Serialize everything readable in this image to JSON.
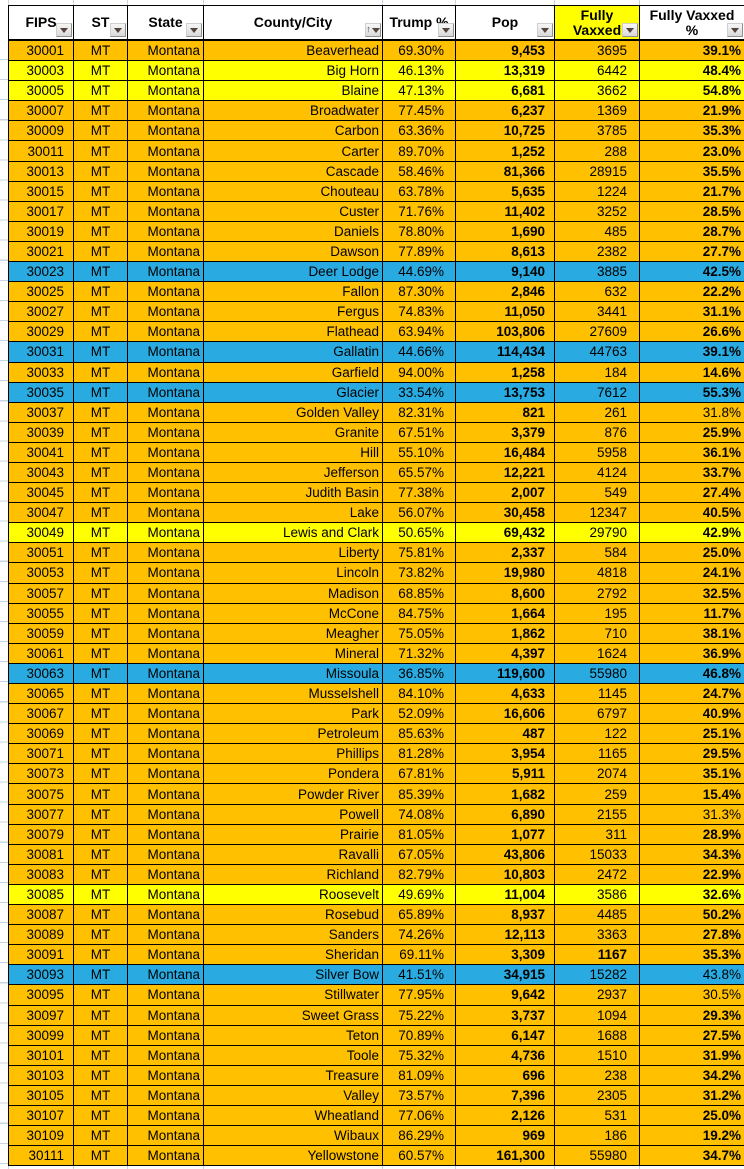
{
  "colors": {
    "row_orange": "#FFC000",
    "row_yellow": "#FFFF00",
    "row_blue": "#29ABE2",
    "header_highlight": "#FFFF00"
  },
  "header": {
    "columns": [
      {
        "id": "fips",
        "label": "FIPS"
      },
      {
        "id": "st",
        "label": "ST"
      },
      {
        "id": "state",
        "label": "State"
      },
      {
        "id": "county",
        "label": "County/City",
        "sorted": true
      },
      {
        "id": "trump",
        "label": "Trump %"
      },
      {
        "id": "pop",
        "label": "Pop"
      },
      {
        "id": "vaxxed",
        "label": "Fully Vaxxed",
        "highlight": "yellow"
      },
      {
        "id": "pct",
        "label": "Fully Vaxxed %"
      }
    ]
  },
  "rows_fields": [
    "fips",
    "st",
    "state",
    "county",
    "trump_pct",
    "pop",
    "fully_vaxxed",
    "fully_vaxxed_pct",
    "row_color",
    "flags"
  ],
  "rows": [
    [
      "30001",
      "MT",
      "Montana",
      "Beaverhead",
      "69.30%",
      "9,453",
      "3695",
      "39.1%",
      "orange",
      ""
    ],
    [
      "30003",
      "MT",
      "Montana",
      "Big Horn",
      "46.13%",
      "13,319",
      "6442",
      "48.4%",
      "yellow",
      ""
    ],
    [
      "30005",
      "MT",
      "Montana",
      "Blaine",
      "47.13%",
      "6,681",
      "3662",
      "54.8%",
      "yellow",
      ""
    ],
    [
      "30007",
      "MT",
      "Montana",
      "Broadwater",
      "77.45%",
      "6,237",
      "1369",
      "21.9%",
      "orange",
      ""
    ],
    [
      "30009",
      "MT",
      "Montana",
      "Carbon",
      "63.36%",
      "10,725",
      "3785",
      "35.3%",
      "orange",
      ""
    ],
    [
      "30011",
      "MT",
      "Montana",
      "Carter",
      "89.70%",
      "1,252",
      "288",
      "23.0%",
      "orange",
      ""
    ],
    [
      "30013",
      "MT",
      "Montana",
      "Cascade",
      "58.46%",
      "81,366",
      "28915",
      "35.5%",
      "orange",
      ""
    ],
    [
      "30015",
      "MT",
      "Montana",
      "Chouteau",
      "63.78%",
      "5,635",
      "1224",
      "21.7%",
      "orange",
      ""
    ],
    [
      "30017",
      "MT",
      "Montana",
      "Custer",
      "71.76%",
      "11,402",
      "3252",
      "28.5%",
      "orange",
      ""
    ],
    [
      "30019",
      "MT",
      "Montana",
      "Daniels",
      "78.80%",
      "1,690",
      "485",
      "28.7%",
      "orange",
      ""
    ],
    [
      "30021",
      "MT",
      "Montana",
      "Dawson",
      "77.89%",
      "8,613",
      "2382",
      "27.7%",
      "orange",
      ""
    ],
    [
      "30023",
      "MT",
      "Montana",
      "Deer Lodge",
      "44.69%",
      "9,140",
      "3885",
      "42.5%",
      "blue",
      ""
    ],
    [
      "30025",
      "MT",
      "Montana",
      "Fallon",
      "87.30%",
      "2,846",
      "632",
      "22.2%",
      "orange",
      ""
    ],
    [
      "30027",
      "MT",
      "Montana",
      "Fergus",
      "74.83%",
      "11,050",
      "3441",
      "31.1%",
      "orange",
      ""
    ],
    [
      "30029",
      "MT",
      "Montana",
      "Flathead",
      "63.94%",
      "103,806",
      "27609",
      "26.6%",
      "orange",
      ""
    ],
    [
      "30031",
      "MT",
      "Montana",
      "Gallatin",
      "44.66%",
      "114,434",
      "44763",
      "39.1%",
      "blue",
      ""
    ],
    [
      "30033",
      "MT",
      "Montana",
      "Garfield",
      "94.00%",
      "1,258",
      "184",
      "14.6%",
      "orange",
      ""
    ],
    [
      "30035",
      "MT",
      "Montana",
      "Glacier",
      "33.54%",
      "13,753",
      "7612",
      "55.3%",
      "blue",
      ""
    ],
    [
      "30037",
      "MT",
      "Montana",
      "Golden Valley",
      "82.31%",
      "821",
      "261",
      "31.8%",
      "orange",
      "pct_plain"
    ],
    [
      "30039",
      "MT",
      "Montana",
      "Granite",
      "67.51%",
      "3,379",
      "876",
      "25.9%",
      "orange",
      ""
    ],
    [
      "30041",
      "MT",
      "Montana",
      "Hill",
      "55.10%",
      "16,484",
      "5958",
      "36.1%",
      "orange",
      ""
    ],
    [
      "30043",
      "MT",
      "Montana",
      "Jefferson",
      "65.57%",
      "12,221",
      "4124",
      "33.7%",
      "orange",
      ""
    ],
    [
      "30045",
      "MT",
      "Montana",
      "Judith Basin",
      "77.38%",
      "2,007",
      "549",
      "27.4%",
      "orange",
      ""
    ],
    [
      "30047",
      "MT",
      "Montana",
      "Lake",
      "56.07%",
      "30,458",
      "12347",
      "40.5%",
      "orange",
      ""
    ],
    [
      "30049",
      "MT",
      "Montana",
      "Lewis and Clark",
      "50.65%",
      "69,432",
      "29790",
      "42.9%",
      "yellow",
      ""
    ],
    [
      "30051",
      "MT",
      "Montana",
      "Liberty",
      "75.81%",
      "2,337",
      "584",
      "25.0%",
      "orange",
      ""
    ],
    [
      "30053",
      "MT",
      "Montana",
      "Lincoln",
      "73.82%",
      "19,980",
      "4818",
      "24.1%",
      "orange",
      ""
    ],
    [
      "30057",
      "MT",
      "Montana",
      "Madison",
      "68.85%",
      "8,600",
      "2792",
      "32.5%",
      "orange",
      ""
    ],
    [
      "30055",
      "MT",
      "Montana",
      "McCone",
      "84.75%",
      "1,664",
      "195",
      "11.7%",
      "orange",
      ""
    ],
    [
      "30059",
      "MT",
      "Montana",
      "Meagher",
      "75.05%",
      "1,862",
      "710",
      "38.1%",
      "orange",
      ""
    ],
    [
      "30061",
      "MT",
      "Montana",
      "Mineral",
      "71.32%",
      "4,397",
      "1624",
      "36.9%",
      "orange",
      ""
    ],
    [
      "30063",
      "MT",
      "Montana",
      "Missoula",
      "36.85%",
      "119,600",
      "55980",
      "46.8%",
      "blue",
      ""
    ],
    [
      "30065",
      "MT",
      "Montana",
      "Musselshell",
      "84.10%",
      "4,633",
      "1145",
      "24.7%",
      "orange",
      ""
    ],
    [
      "30067",
      "MT",
      "Montana",
      "Park",
      "52.09%",
      "16,606",
      "6797",
      "40.9%",
      "orange",
      ""
    ],
    [
      "30069",
      "MT",
      "Montana",
      "Petroleum",
      "85.63%",
      "487",
      "122",
      "25.1%",
      "orange",
      ""
    ],
    [
      "30071",
      "MT",
      "Montana",
      "Phillips",
      "81.28%",
      "3,954",
      "1165",
      "29.5%",
      "orange",
      ""
    ],
    [
      "30073",
      "MT",
      "Montana",
      "Pondera",
      "67.81%",
      "5,911",
      "2074",
      "35.1%",
      "orange",
      ""
    ],
    [
      "30075",
      "MT",
      "Montana",
      "Powder River",
      "85.39%",
      "1,682",
      "259",
      "15.4%",
      "orange",
      ""
    ],
    [
      "30077",
      "MT",
      "Montana",
      "Powell",
      "74.08%",
      "6,890",
      "2155",
      "31.3%",
      "orange",
      "pct_plain"
    ],
    [
      "30079",
      "MT",
      "Montana",
      "Prairie",
      "81.05%",
      "1,077",
      "311",
      "28.9%",
      "orange",
      ""
    ],
    [
      "30081",
      "MT",
      "Montana",
      "Ravalli",
      "67.05%",
      "43,806",
      "15033",
      "34.3%",
      "orange",
      ""
    ],
    [
      "30083",
      "MT",
      "Montana",
      "Richland",
      "82.79%",
      "10,803",
      "2472",
      "22.9%",
      "orange",
      ""
    ],
    [
      "30085",
      "MT",
      "Montana",
      "Roosevelt",
      "49.69%",
      "11,004",
      "3586",
      "32.6%",
      "yellow",
      ""
    ],
    [
      "30087",
      "MT",
      "Montana",
      "Rosebud",
      "65.89%",
      "8,937",
      "4485",
      "50.2%",
      "orange",
      ""
    ],
    [
      "30089",
      "MT",
      "Montana",
      "Sanders",
      "74.26%",
      "12,113",
      "3363",
      "27.8%",
      "orange",
      ""
    ],
    [
      "30091",
      "MT",
      "Montana",
      "Sheridan",
      "69.11%",
      "3,309",
      "1167",
      "35.3%",
      "orange",
      "vax_bold"
    ],
    [
      "30093",
      "MT",
      "Montana",
      "Silver Bow",
      "41.51%",
      "34,915",
      "15282",
      "43.8%",
      "blue",
      "pct_plain"
    ],
    [
      "30095",
      "MT",
      "Montana",
      "Stillwater",
      "77.95%",
      "9,642",
      "2937",
      "30.5%",
      "orange",
      "pct_plain"
    ],
    [
      "30097",
      "MT",
      "Montana",
      "Sweet Grass",
      "75.22%",
      "3,737",
      "1094",
      "29.3%",
      "orange",
      ""
    ],
    [
      "30099",
      "MT",
      "Montana",
      "Teton",
      "70.89%",
      "6,147",
      "1688",
      "27.5%",
      "orange",
      ""
    ],
    [
      "30101",
      "MT",
      "Montana",
      "Toole",
      "75.32%",
      "4,736",
      "1510",
      "31.9%",
      "orange",
      ""
    ],
    [
      "30103",
      "MT",
      "Montana",
      "Treasure",
      "81.09%",
      "696",
      "238",
      "34.2%",
      "orange",
      ""
    ],
    [
      "30105",
      "MT",
      "Montana",
      "Valley",
      "73.57%",
      "7,396",
      "2305",
      "31.2%",
      "orange",
      ""
    ],
    [
      "30107",
      "MT",
      "Montana",
      "Wheatland",
      "77.06%",
      "2,126",
      "531",
      "25.0%",
      "orange",
      ""
    ],
    [
      "30109",
      "MT",
      "Montana",
      "Wibaux",
      "86.29%",
      "969",
      "186",
      "19.2%",
      "orange",
      ""
    ],
    [
      "30111",
      "MT",
      "Montana",
      "Yellowstone",
      "60.57%",
      "161,300",
      "55980",
      "34.7%",
      "orange",
      ""
    ]
  ]
}
